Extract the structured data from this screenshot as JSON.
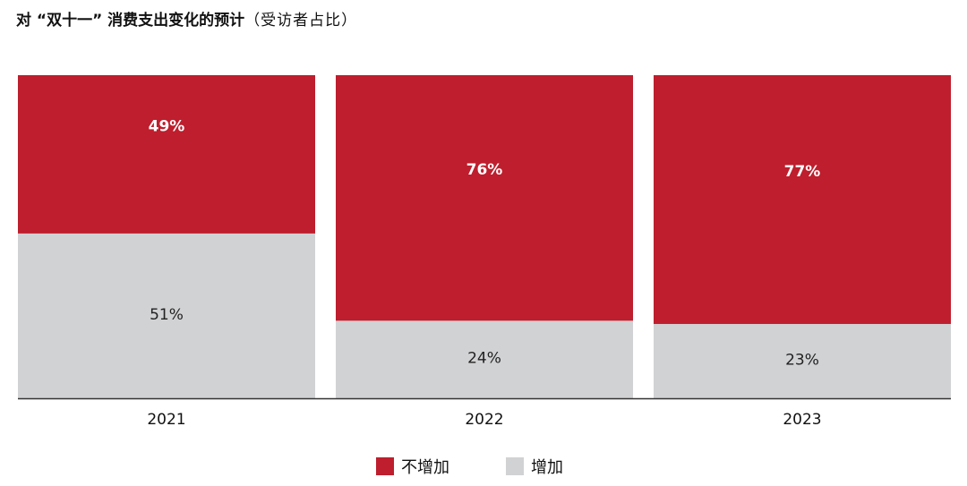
{
  "title": {
    "main": "对 “双十一” 消费支出变化的预计",
    "sub": "（受访者占比）"
  },
  "colors": {
    "not_increase": "#be1e2d",
    "increase": "#d1d2d4",
    "axis": "#333333",
    "label_on_red": "#ffffff",
    "label_on_gray": "#222222"
  },
  "legend": [
    {
      "label": "不增加",
      "color": "#be1e2d"
    },
    {
      "label": "增加",
      "color": "#d1d2d4"
    }
  ],
  "chart_data": {
    "type": "bar",
    "stacked": true,
    "percent": true,
    "categories": [
      "2021",
      "2022",
      "2023"
    ],
    "series": [
      {
        "name": "增加",
        "values": [
          51,
          24,
          23
        ],
        "labels": [
          "51%",
          "24%",
          "23%"
        ]
      },
      {
        "name": "不增加",
        "values": [
          49,
          76,
          77
        ],
        "labels": [
          "49%",
          "76%",
          "77%"
        ]
      }
    ],
    "ylim": [
      0,
      100
    ],
    "grid": false,
    "legend_position": "bottom"
  }
}
